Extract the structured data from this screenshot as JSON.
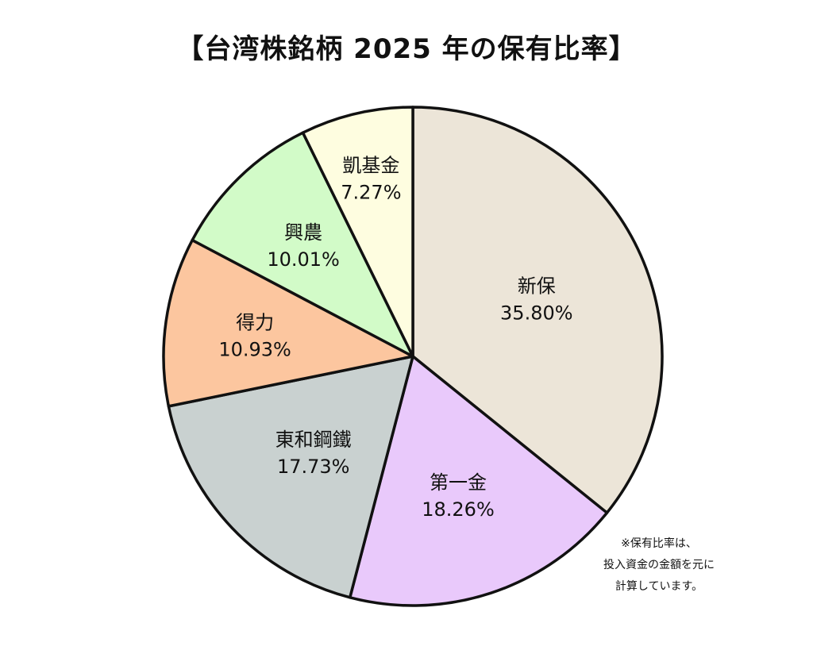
{
  "chart_data": {
    "type": "pie",
    "title": "【台湾株銘柄 2025 年の保有比率】",
    "slices": [
      {
        "label": "新保",
        "value": 35.8,
        "value_label": "35.80%",
        "color": "#ece5d8"
      },
      {
        "label": "第一金",
        "value": 18.26,
        "value_label": "18.26%",
        "color": "#e9c9fb"
      },
      {
        "label": "東和鋼鐵",
        "value": 17.73,
        "value_label": "17.73%",
        "color": "#c9d1d0"
      },
      {
        "label": "得力",
        "value": 10.93,
        "value_label": "10.93%",
        "color": "#fcc69f"
      },
      {
        "label": "興農",
        "value": 10.01,
        "value_label": "10.01%",
        "color": "#d2fbc8"
      },
      {
        "label": "凱基金",
        "value": 7.27,
        "value_label": "7.27%",
        "color": "#fefde0"
      }
    ],
    "start": "12 o'clock",
    "direction": "clockwise"
  },
  "note": {
    "lines": [
      "※保有比率は、",
      "投入資金の金額を元に",
      "計算しています。"
    ]
  }
}
